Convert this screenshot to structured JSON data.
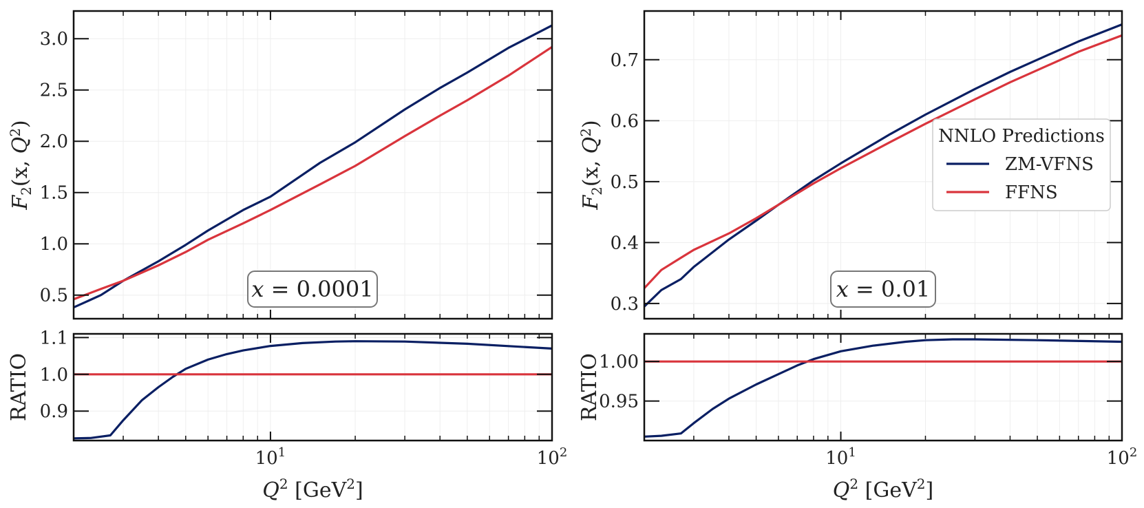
{
  "figure_title": "",
  "colors": {
    "zm": "#0a1f63",
    "ffns": "#d9343c",
    "frame": "#111111",
    "grid": "#eeeeee",
    "ann_border": "#777777"
  },
  "legend": {
    "title": "NNLO Predictions",
    "items": [
      "ZM-VFNS",
      "FFNS"
    ],
    "placement": "right-middle of right top panel"
  },
  "chart_data": [
    {
      "type": "line",
      "panel": "left-top",
      "annotation": "x = 0.0001",
      "xlabel": "",
      "ylabel": "F2(x, Q2)",
      "xscale": "log",
      "xlim": [
        2,
        100
      ],
      "ylim": [
        0.27,
        3.27
      ],
      "yticks": [
        0.5,
        1.0,
        1.5,
        2.0,
        2.5,
        3.0
      ],
      "ytick_labels": [
        "0.5",
        "1.0",
        "1.5",
        "2.0",
        "2.5",
        "3.0"
      ],
      "x": [
        2,
        2.5,
        3,
        4,
        5,
        6,
        8,
        10,
        15,
        20,
        30,
        40,
        50,
        70,
        100
      ],
      "series": [
        {
          "name": "ZM-VFNS",
          "values": [
            0.38,
            0.5,
            0.64,
            0.83,
            0.99,
            1.13,
            1.33,
            1.46,
            1.79,
            1.99,
            2.31,
            2.52,
            2.67,
            2.91,
            3.13
          ]
        },
        {
          "name": "FFNS",
          "values": [
            0.46,
            0.56,
            0.64,
            0.79,
            0.92,
            1.04,
            1.2,
            1.33,
            1.58,
            1.76,
            2.05,
            2.25,
            2.4,
            2.64,
            2.92
          ]
        }
      ]
    },
    {
      "type": "line",
      "panel": "right-top",
      "annotation": "x = 0.01",
      "xlabel": "",
      "ylabel": "F2(x, Q2)",
      "xscale": "log",
      "xlim": [
        2,
        100
      ],
      "ylim": [
        0.275,
        0.78
      ],
      "yticks": [
        0.3,
        0.4,
        0.5,
        0.6,
        0.7
      ],
      "ytick_labels": [
        "0.3",
        "0.4",
        "0.5",
        "0.6",
        "0.7"
      ],
      "x": [
        2,
        2.3,
        2.7,
        3,
        4,
        5,
        6,
        8,
        10,
        15,
        20,
        30,
        40,
        50,
        70,
        100
      ],
      "series": [
        {
          "name": "ZM-VFNS",
          "values": [
            0.295,
            0.322,
            0.34,
            0.36,
            0.405,
            0.436,
            0.462,
            0.502,
            0.53,
            0.578,
            0.61,
            0.652,
            0.68,
            0.7,
            0.73,
            0.758
          ]
        },
        {
          "name": "FFNS",
          "values": [
            0.325,
            0.355,
            0.375,
            0.388,
            0.415,
            0.44,
            0.462,
            0.497,
            0.522,
            0.565,
            0.595,
            0.635,
            0.663,
            0.683,
            0.713,
            0.74
          ]
        }
      ]
    },
    {
      "type": "line",
      "panel": "left-bottom",
      "xlabel": "Q2 [GeV2]",
      "ylabel": "RATIO",
      "xscale": "log",
      "xlim": [
        2,
        100
      ],
      "ylim": [
        0.82,
        1.11
      ],
      "yticks": [
        0.9,
        1.0,
        1.1
      ],
      "ytick_labels": [
        "0.9",
        "1.0",
        "1.1"
      ],
      "xtick_labels": [
        "10^1",
        "10^2"
      ],
      "x": [
        2,
        2.3,
        2.7,
        3,
        3.5,
        4,
        4.5,
        5,
        6,
        7,
        8,
        10,
        13,
        17,
        20,
        30,
        50,
        100
      ],
      "series": [
        {
          "name": "ZM-VFNS",
          "values": [
            0.826,
            0.827,
            0.834,
            0.875,
            0.93,
            0.965,
            0.993,
            1.015,
            1.04,
            1.055,
            1.065,
            1.077,
            1.085,
            1.089,
            1.09,
            1.089,
            1.083,
            1.07
          ]
        },
        {
          "name": "FFNS",
          "values": [
            1.0,
            1.0
          ],
          "x": [
            2,
            100
          ]
        }
      ]
    },
    {
      "type": "line",
      "panel": "right-bottom",
      "xlabel": "Q2 [GeV2]",
      "ylabel": "RATIO",
      "xscale": "log",
      "xlim": [
        2,
        100
      ],
      "ylim": [
        0.9,
        1.035
      ],
      "yticks": [
        0.95,
        1.0
      ],
      "ytick_labels": [
        "0.95",
        "1.00"
      ],
      "xtick_labels": [
        "10^1",
        "10^2"
      ],
      "x": [
        2,
        2.3,
        2.7,
        3,
        3.5,
        4,
        5,
        6,
        7,
        8,
        10,
        13,
        17,
        20,
        25,
        30,
        50,
        100
      ],
      "series": [
        {
          "name": "ZM-VFNS",
          "values": [
            0.905,
            0.906,
            0.909,
            0.922,
            0.94,
            0.953,
            0.971,
            0.984,
            0.995,
            1.003,
            1.013,
            1.02,
            1.025,
            1.027,
            1.028,
            1.028,
            1.027,
            1.025
          ]
        },
        {
          "name": "FFNS",
          "values": [
            1.0,
            1.0
          ],
          "x": [
            2,
            100
          ]
        }
      ]
    }
  ]
}
